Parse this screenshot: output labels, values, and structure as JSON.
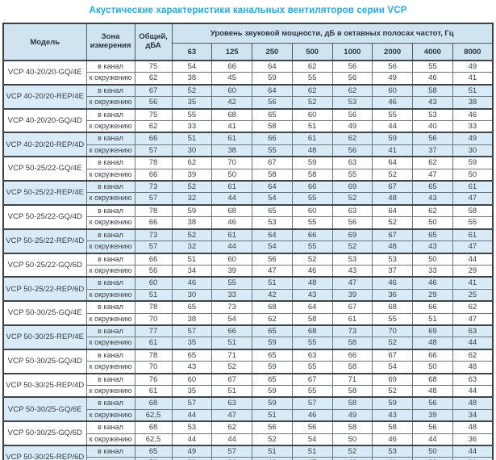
{
  "title": "Акустические характеристики канальных вентиляторов  серии VCP",
  "table": {
    "headers": {
      "model": "Модель",
      "zone": "Зона измерения",
      "total": "Общий, дБА",
      "octave_group": "Уровень звуковой мощности, дБ в октавных полосах частот, Гц",
      "frequencies": [
        "63",
        "125",
        "250",
        "500",
        "1000",
        "2000",
        "4000",
        "8000"
      ]
    },
    "zone_labels": {
      "duct": "в канал",
      "ambient": "к окружению"
    },
    "rows": [
      {
        "model": "VCP 40-20/20-GQ/4E",
        "shaded": false,
        "duct": {
          "total": "75",
          "bands": [
            "54",
            "66",
            "64",
            "62",
            "56",
            "56",
            "55",
            "49"
          ]
        },
        "ambient": {
          "total": "62",
          "bands": [
            "38",
            "45",
            "59",
            "55",
            "56",
            "49",
            "46",
            "41"
          ]
        }
      },
      {
        "model": "VCP 40-20/20-REP/4E",
        "shaded": true,
        "duct": {
          "total": "67",
          "bands": [
            "52",
            "60",
            "64",
            "62",
            "62",
            "60",
            "58",
            "51"
          ]
        },
        "ambient": {
          "total": "56",
          "bands": [
            "35",
            "42",
            "56",
            "52",
            "53",
            "46",
            "43",
            "38"
          ]
        }
      },
      {
        "model": "VCP 40-20/20-GQ/4D",
        "shaded": false,
        "duct": {
          "total": "75",
          "bands": [
            "55",
            "68",
            "65",
            "60",
            "56",
            "55",
            "53",
            "46"
          ]
        },
        "ambient": {
          "total": "62",
          "bands": [
            "33",
            "41",
            "58",
            "51",
            "49",
            "44",
            "40",
            "33"
          ]
        }
      },
      {
        "model": "VCP 40-20/20-REP/4D",
        "shaded": true,
        "duct": {
          "total": "66",
          "bands": [
            "51",
            "61",
            "66",
            "61",
            "62",
            "59",
            "56",
            "49"
          ]
        },
        "ambient": {
          "total": "57",
          "bands": [
            "30",
            "38",
            "55",
            "48",
            "56",
            "41",
            "37",
            "30"
          ]
        }
      },
      {
        "model": "VCP 50-25/22-GQ/4E",
        "shaded": false,
        "duct": {
          "total": "78",
          "bands": [
            "62",
            "70",
            "67",
            "59",
            "63",
            "64",
            "62",
            "59"
          ]
        },
        "ambient": {
          "total": "66",
          "bands": [
            "39",
            "50",
            "58",
            "58",
            "55",
            "52",
            "47",
            "50"
          ]
        }
      },
      {
        "model": "VCP 50-25/22-REP/4E",
        "shaded": true,
        "duct": {
          "total": "73",
          "bands": [
            "52",
            "61",
            "64",
            "66",
            "69",
            "67",
            "65",
            "61"
          ]
        },
        "ambient": {
          "total": "57",
          "bands": [
            "32",
            "44",
            "54",
            "55",
            "52",
            "48",
            "43",
            "47"
          ]
        }
      },
      {
        "model": "VCP 50-25/22-GQ/4D",
        "shaded": false,
        "duct": {
          "total": "78",
          "bands": [
            "59",
            "68",
            "65",
            "60",
            "63",
            "64",
            "62",
            "58"
          ]
        },
        "ambient": {
          "total": "66",
          "bands": [
            "38",
            "46",
            "53",
            "55",
            "56",
            "52",
            "50",
            "55"
          ]
        }
      },
      {
        "model": "VCP 50-25/22-REP/4D",
        "shaded": true,
        "duct": {
          "total": "73",
          "bands": [
            "52",
            "61",
            "64",
            "66",
            "69",
            "67",
            "65",
            "61"
          ]
        },
        "ambient": {
          "total": "57",
          "bands": [
            "32",
            "44",
            "54",
            "55",
            "52",
            "48",
            "43",
            "47"
          ]
        }
      },
      {
        "model": "VCP 50-25/22-GQ/6D",
        "shaded": false,
        "duct": {
          "total": "66",
          "bands": [
            "51",
            "60",
            "56",
            "52",
            "53",
            "53",
            "50",
            "44"
          ]
        },
        "ambient": {
          "total": "56",
          "bands": [
            "34",
            "39",
            "47",
            "46",
            "43",
            "37",
            "33",
            "29"
          ]
        }
      },
      {
        "model": "VCP 50-25/22-REP/6D",
        "shaded": true,
        "duct": {
          "total": "60",
          "bands": [
            "46",
            "55",
            "51",
            "48",
            "47",
            "46",
            "46",
            "41"
          ]
        },
        "ambient": {
          "total": "51",
          "bands": [
            "30",
            "33",
            "42",
            "43",
            "39",
            "36",
            "29",
            "25"
          ]
        }
      },
      {
        "model": "VCP 50-30/25-GQ/4E",
        "shaded": false,
        "duct": {
          "total": "78",
          "bands": [
            "65",
            "73",
            "68",
            "64",
            "67",
            "68",
            "66",
            "62"
          ]
        },
        "ambient": {
          "total": "70",
          "bands": [
            "38",
            "54",
            "62",
            "58",
            "61",
            "55",
            "51",
            "47"
          ]
        }
      },
      {
        "model": "VCP 50-30/25-REP/4E",
        "shaded": true,
        "duct": {
          "total": "77",
          "bands": [
            "57",
            "66",
            "65",
            "68",
            "73",
            "70",
            "69",
            "63"
          ]
        },
        "ambient": {
          "total": "61",
          "bands": [
            "35",
            "51",
            "59",
            "55",
            "58",
            "52",
            "48",
            "44"
          ]
        }
      },
      {
        "model": "VCP 50-30/25-GQ/4D",
        "shaded": false,
        "duct": {
          "total": "78",
          "bands": [
            "65",
            "71",
            "65",
            "63",
            "66",
            "67",
            "66",
            "62"
          ]
        },
        "ambient": {
          "total": "70",
          "bands": [
            "43",
            "52",
            "59",
            "55",
            "58",
            "54",
            "50",
            "48"
          ]
        }
      },
      {
        "model": "VCP 50-30/25-REP/4D",
        "shaded": false,
        "duct": {
          "total": "76",
          "bands": [
            "60",
            "67",
            "65",
            "67",
            "71",
            "69",
            "68",
            "63"
          ]
        },
        "ambient": {
          "total": "61",
          "bands": [
            "35",
            "51",
            "59",
            "55",
            "58",
            "52",
            "48",
            "44"
          ]
        }
      },
      {
        "model": "VCP 50-30/25-GQ/6E",
        "shaded": true,
        "duct": {
          "total": "68",
          "bands": [
            "57",
            "63",
            "59",
            "57",
            "58",
            "59",
            "56",
            "48"
          ]
        },
        "ambient": {
          "total": "62,5",
          "bands": [
            "44",
            "47",
            "51",
            "46",
            "49",
            "43",
            "39",
            "34"
          ]
        }
      },
      {
        "model": "VCP 50-30/25-GQ/6D",
        "shaded": false,
        "duct": {
          "total": "68",
          "bands": [
            "53",
            "62",
            "56",
            "56",
            "58",
            "58",
            "56",
            "48"
          ]
        },
        "ambient": {
          "total": "62,5",
          "bands": [
            "44",
            "44",
            "52",
            "54",
            "50",
            "46",
            "44",
            "36"
          ]
        }
      },
      {
        "model": "VCP 50-30/25-REP/6D",
        "shaded": true,
        "duct": {
          "total": "65",
          "bands": [
            "49",
            "57",
            "51",
            "51",
            "52",
            "53",
            "50",
            "44"
          ]
        },
        "ambient": {
          "total": "58",
          "bands": [
            "39",
            "36",
            "46",
            "47",
            "48",
            "40",
            "39",
            "31"
          ]
        }
      }
    ]
  },
  "colors": {
    "title_text": "#29a9e1",
    "header_bg": "#cfe3f1",
    "shaded_row_bg": "#d9ebf7",
    "border": "#4f565c",
    "text": "#3a3f44"
  }
}
